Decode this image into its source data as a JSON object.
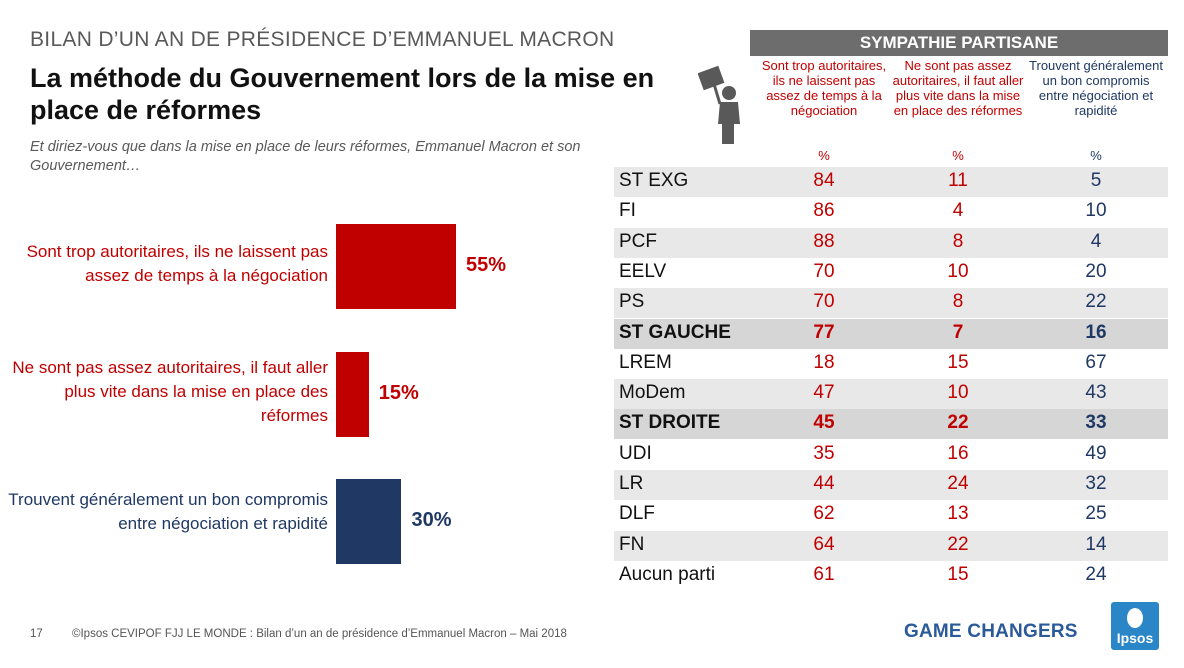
{
  "header": {
    "supertitle": "BILAN D’UN AN DE PRÉSIDENCE D’EMMANUEL MACRON",
    "title": "La méthode du Gouvernement lors de la mise en place de réformes",
    "question": "Et diriez-vous que dans la mise en place de leurs réformes, Emmanuel Macron et son Gouvernement…"
  },
  "chart_data": [
    {
      "type": "bar",
      "orientation": "horizontal",
      "categories": [
        "Sont trop autoritaires, ils ne laissent pas assez de temps à la négociation",
        "Ne sont pas assez autoritaires, il faut aller plus vite dans la mise en place des réformes",
        "Trouvent généralement un bon compromis entre négociation et rapidité"
      ],
      "values": [
        55,
        15,
        30
      ],
      "value_labels": [
        "55%",
        "15%",
        "30%"
      ],
      "colors": [
        "#c00000",
        "#c00000",
        "#1f3864"
      ],
      "label_colors": [
        "#c00000",
        "#c00000",
        "#1f3864"
      ]
    },
    {
      "type": "table",
      "band_title": "SYMPATHIE PARTISANE",
      "columns": [
        {
          "label": "Sont trop autoritaires, ils ne laissent pas assez de temps à la négociation",
          "unit": "%",
          "color": "#c00000"
        },
        {
          "label": "Ne sont pas assez autoritaires, il faut aller plus vite dans la mise en place des réformes",
          "unit": "%",
          "color": "#c00000"
        },
        {
          "label": "Trouvent généralement un bon compromis entre négociation et rapidité",
          "unit": "%",
          "color": "#1f3864"
        }
      ],
      "rows": [
        {
          "party": "ST EXG",
          "values": [
            "84",
            "11",
            "5"
          ],
          "kind": "shaded"
        },
        {
          "party": "FI",
          "values": [
            "86",
            "4",
            "10"
          ],
          "kind": "plain"
        },
        {
          "party": "PCF",
          "values": [
            "88",
            "8",
            "4"
          ],
          "kind": "shaded"
        },
        {
          "party": "EELV",
          "values": [
            "70",
            "10",
            "20"
          ],
          "kind": "plain"
        },
        {
          "party": "PS",
          "values": [
            "70",
            "8",
            "22"
          ],
          "kind": "shaded"
        },
        {
          "party": "ST GAUCHE",
          "values": [
            "77",
            "7",
            "16"
          ],
          "kind": "total"
        },
        {
          "party": "LREM",
          "values": [
            "18",
            "15",
            "67"
          ],
          "kind": "plain"
        },
        {
          "party": "MoDem",
          "values": [
            "47",
            "10",
            "43"
          ],
          "kind": "shaded"
        },
        {
          "party": "ST DROITE",
          "values": [
            "45",
            "22",
            "33"
          ],
          "kind": "total"
        },
        {
          "party": "UDI",
          "values": [
            "35",
            "16",
            "49"
          ],
          "kind": "plain"
        },
        {
          "party": "LR",
          "values": [
            "44",
            "24",
            "32"
          ],
          "kind": "shaded"
        },
        {
          "party": "DLF",
          "values": [
            "62",
            "13",
            "25"
          ],
          "kind": "plain"
        },
        {
          "party": "FN",
          "values": [
            "64",
            "22",
            "14"
          ],
          "kind": "shaded"
        },
        {
          "party": "Aucun parti",
          "values": [
            "61",
            "15",
            "24"
          ],
          "kind": "plain"
        }
      ]
    }
  ],
  "footer": {
    "page": "17",
    "source": "©Ipsos  CEVIPOF FJJ LE MONDE : Bilan d’un an de présidence d’Emmanuel Macron – Mai 2018",
    "tagline": "GAME CHANGERS",
    "logo_text": "Ipsos"
  },
  "icons": {
    "protester": "protester-sign-icon"
  }
}
